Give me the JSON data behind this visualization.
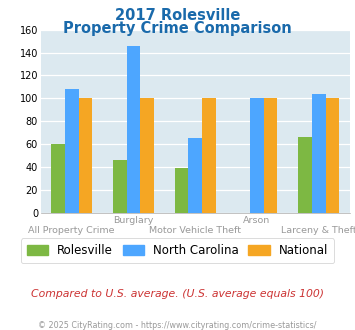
{
  "title_line1": "2017 Rolesville",
  "title_line2": "Property Crime Comparison",
  "groups": [
    "All Property Crime",
    "Burglary",
    "Motor Vehicle Theft",
    "Arson",
    "Larceny & Theft"
  ],
  "rolesville": [
    60,
    46,
    39,
    0,
    66
  ],
  "north_carolina": [
    108,
    146,
    65,
    100,
    104
  ],
  "national": [
    100,
    100,
    100,
    100,
    100
  ],
  "color_rolesville": "#7db843",
  "color_nc": "#4da6ff",
  "color_national": "#f5a623",
  "ylim": [
    0,
    160
  ],
  "yticks": [
    0,
    20,
    40,
    60,
    80,
    100,
    120,
    140,
    160
  ],
  "bg_color": "#dce9f0",
  "title_color": "#1a6aab",
  "footer_text": "© 2025 CityRating.com - https://www.cityrating.com/crime-statistics/",
  "compare_text": "Compared to U.S. average. (U.S. average equals 100)",
  "legend_labels": [
    "Rolesville",
    "North Carolina",
    "National"
  ],
  "upper_xlabels": {
    "1": "Burglary",
    "3": "Arson"
  },
  "lower_xlabels": {
    "0": "All Property Crime",
    "2": "Motor Vehicle Theft",
    "4": "Larceny & Theft"
  },
  "upper_label_color": "#999999",
  "lower_label_color": "#999999",
  "compare_color": "#cc3333",
  "footer_color": "#999999"
}
